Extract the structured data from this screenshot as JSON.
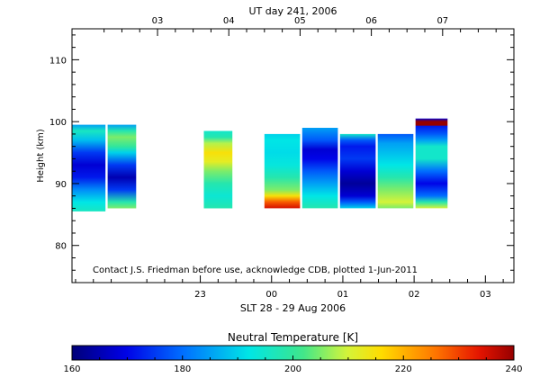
{
  "chart_data": {
    "type": "heatmap",
    "top_axis_title": "UT day 241, 2006",
    "bottom_axis_title": "SLT 28 - 29 Aug 2006",
    "ylabel": "Height (km)",
    "ylim": [
      74,
      115
    ],
    "xlim": [
      21.2,
      27.4
    ],
    "top_ticks": [
      {
        "x": 22.4,
        "label": "03"
      },
      {
        "x": 23.4,
        "label": "04"
      },
      {
        "x": 24.4,
        "label": "05"
      },
      {
        "x": 25.4,
        "label": "06"
      },
      {
        "x": 26.4,
        "label": "07"
      }
    ],
    "bottom_ticks": [
      {
        "x": 23.0,
        "label": "23"
      },
      {
        "x": 24.0,
        "label": "00"
      },
      {
        "x": 25.0,
        "label": "01"
      },
      {
        "x": 26.0,
        "label": "02"
      },
      {
        "x": 27.0,
        "label": "03"
      }
    ],
    "y_ticks": [
      {
        "y": 80,
        "label": "80"
      },
      {
        "y": 90,
        "label": "90"
      },
      {
        "y": 100,
        "label": "100"
      },
      {
        "y": 110,
        "label": "110"
      }
    ],
    "colorbar": {
      "title": "Neutral Temperature [K]",
      "min": 160,
      "max": 240,
      "ticks": [
        {
          "v": 160,
          "label": "160"
        },
        {
          "v": 180,
          "label": "180"
        },
        {
          "v": 200,
          "label": "200"
        },
        {
          "v": 220,
          "label": "220"
        },
        {
          "v": 240,
          "label": "240"
        }
      ]
    },
    "note": "Contact J.S. Friedman before use, acknowledge CDB, plotted 1-Jun-2011",
    "columns": [
      {
        "x0": 21.2,
        "x1": 21.67,
        "y0": 85.5,
        "y1": 99.5,
        "profile": [
          [
            85.5,
            196
          ],
          [
            87,
            192
          ],
          [
            89,
            183
          ],
          [
            91,
            172
          ],
          [
            93,
            168
          ],
          [
            95,
            175
          ],
          [
            97,
            188
          ],
          [
            98.5,
            196
          ],
          [
            99.5,
            185
          ]
        ]
      },
      {
        "x0": 21.7,
        "x1": 22.1,
        "y0": 86,
        "y1": 99.5,
        "profile": [
          [
            86,
            205
          ],
          [
            87,
            198
          ],
          [
            89,
            175
          ],
          [
            91,
            165
          ],
          [
            93,
            175
          ],
          [
            95,
            190
          ],
          [
            96,
            200
          ],
          [
            97.5,
            205
          ],
          [
            98.5,
            198
          ],
          [
            99.5,
            185
          ]
        ]
      },
      {
        "x0": 23.05,
        "x1": 23.45,
        "y0": 86,
        "y1": 98.5,
        "profile": [
          [
            86,
            198
          ],
          [
            88,
            194
          ],
          [
            90,
            198
          ],
          [
            92,
            205
          ],
          [
            93.5,
            212
          ],
          [
            95,
            215
          ],
          [
            96.5,
            208
          ],
          [
            97.5,
            198
          ],
          [
            98.5,
            195
          ]
        ]
      },
      {
        "x0": 23.9,
        "x1": 24.4,
        "y0": 86,
        "y1": 98,
        "profile": [
          [
            86,
            235
          ],
          [
            87,
            228
          ],
          [
            88,
            215
          ],
          [
            89,
            205
          ],
          [
            91,
            198
          ],
          [
            93,
            193
          ],
          [
            95,
            191
          ],
          [
            97,
            192
          ],
          [
            98,
            190
          ]
        ]
      },
      {
        "x0": 24.43,
        "x1": 24.93,
        "y0": 86,
        "y1": 99,
        "profile": [
          [
            86,
            198
          ],
          [
            88,
            192
          ],
          [
            90,
            185
          ],
          [
            92,
            178
          ],
          [
            94,
            170
          ],
          [
            95.5,
            168
          ],
          [
            97,
            178
          ],
          [
            99,
            185
          ]
        ]
      },
      {
        "x0": 24.96,
        "x1": 25.46,
        "y0": 86,
        "y1": 98,
        "profile": [
          [
            86,
            190
          ],
          [
            87,
            178
          ],
          [
            88,
            168
          ],
          [
            90,
            163
          ],
          [
            92,
            168
          ],
          [
            94,
            175
          ],
          [
            96,
            172
          ],
          [
            97,
            178
          ],
          [
            98,
            195
          ]
        ]
      },
      {
        "x0": 25.49,
        "x1": 25.99,
        "y0": 86,
        "y1": 98,
        "profile": [
          [
            86,
            205
          ],
          [
            87,
            210
          ],
          [
            89,
            205
          ],
          [
            91,
            198
          ],
          [
            93,
            192
          ],
          [
            95,
            188
          ],
          [
            96.5,
            185
          ],
          [
            98,
            178
          ]
        ]
      },
      {
        "x0": 26.02,
        "x1": 26.47,
        "y0": 86,
        "y1": 100.5,
        "profile": [
          [
            86,
            210
          ],
          [
            87,
            198
          ],
          [
            88,
            180
          ],
          [
            90,
            170
          ],
          [
            92,
            180
          ],
          [
            94,
            195
          ],
          [
            96,
            195
          ],
          [
            97,
            185
          ],
          [
            98,
            178
          ],
          [
            99.3,
            172
          ],
          [
            99.4,
            255
          ],
          [
            100,
            255
          ],
          [
            100.5,
            168
          ]
        ]
      }
    ]
  }
}
